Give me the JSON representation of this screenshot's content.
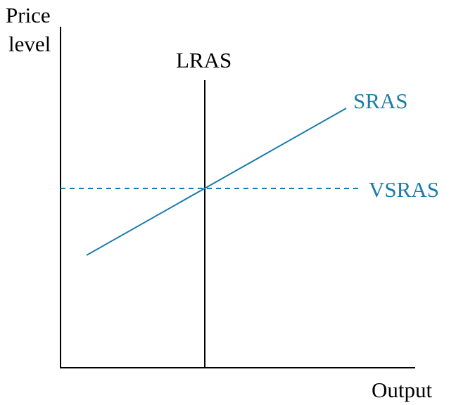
{
  "axes": {
    "y_label_line1": "Price",
    "y_label_line2": "level",
    "x_label": "Output"
  },
  "curves": [
    {
      "id": "lras",
      "label": "LRAS",
      "style": "solid",
      "orientation": "vertical"
    },
    {
      "id": "sras",
      "label": "SRAS",
      "style": "solid",
      "orientation": "upward-sloping"
    },
    {
      "id": "vsras",
      "label": "VSRAS",
      "style": "dashed",
      "orientation": "horizontal"
    }
  ],
  "colors": {
    "axis": "#000000",
    "lras": "#000000",
    "sras": "#1a7ca8",
    "vsras": "#1a7ca8"
  }
}
